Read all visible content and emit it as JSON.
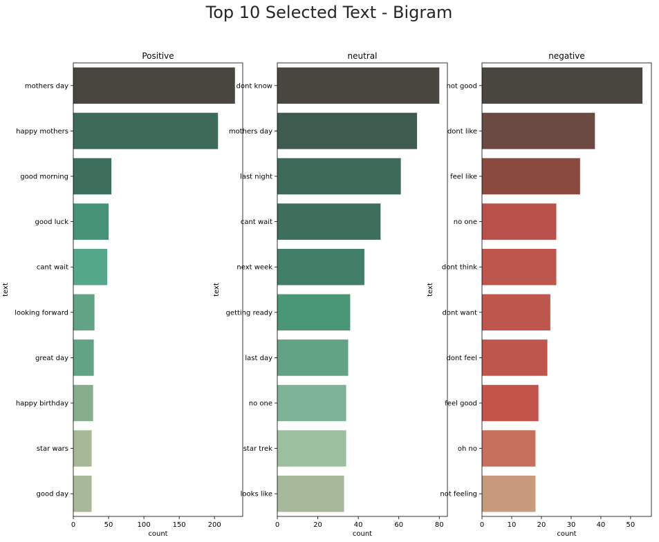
{
  "page": {
    "title": "Top 10 Selected Text - Bigram"
  },
  "chart_data": [
    {
      "type": "bar",
      "orientation": "horizontal",
      "title": "Positive",
      "xlabel": "count",
      "ylabel": "text",
      "categories": [
        "mothers day",
        "happy mothers",
        "good morning",
        "good luck",
        "cant wait",
        "looking forward",
        "great day",
        "happy birthday",
        "star wars",
        "good day"
      ],
      "values": [
        229,
        205,
        54,
        50,
        48,
        30,
        29,
        28,
        26,
        26
      ],
      "colors": [
        "#48463f",
        "#3d6a59",
        "#3e6e5c",
        "#469276",
        "#54a788",
        "#62a285",
        "#62a285",
        "#86ae8c",
        "#a6b795",
        "#a8b99b"
      ],
      "xlim": [
        0,
        240
      ],
      "xticks": [
        0,
        50,
        100,
        150,
        200
      ],
      "grid": false
    },
    {
      "type": "bar",
      "orientation": "horizontal",
      "title": "neutral",
      "xlabel": "count",
      "ylabel": "text",
      "categories": [
        "dont know",
        "mothers day",
        "last night",
        "cant wait",
        "next week",
        "getting ready",
        "last day",
        "no one",
        "star trek",
        "looks like"
      ],
      "values": [
        80,
        69,
        61,
        51,
        43,
        36,
        35,
        34,
        34,
        33
      ],
      "colors": [
        "#48463f",
        "#3f5a4e",
        "#3d6a59",
        "#3e6e5c",
        "#427f68",
        "#4a9778",
        "#62a285",
        "#7eb397",
        "#9cc09f",
        "#a8b99b"
      ],
      "xlim": [
        0,
        84
      ],
      "xticks": [
        0,
        20,
        40,
        60,
        80
      ],
      "grid": false
    },
    {
      "type": "bar",
      "orientation": "horizontal",
      "title": "negative",
      "xlabel": "count",
      "ylabel": "text",
      "categories": [
        "not good",
        "dont like",
        "feel like",
        "no one",
        "dont think",
        "dont want",
        "dont feel",
        "feel good",
        "oh no",
        "not feeling"
      ],
      "values": [
        54,
        38,
        33,
        25,
        25,
        23,
        22,
        19,
        18,
        18
      ],
      "colors": [
        "#48463f",
        "#6a4a42",
        "#8b4a40",
        "#b8514a",
        "#bf564d",
        "#bf564d",
        "#bf564d",
        "#c4544a",
        "#c8705e",
        "#c89a7c"
      ],
      "xlim": [
        0,
        57
      ],
      "xticks": [
        0,
        10,
        20,
        30,
        40,
        50
      ],
      "grid": false
    }
  ]
}
